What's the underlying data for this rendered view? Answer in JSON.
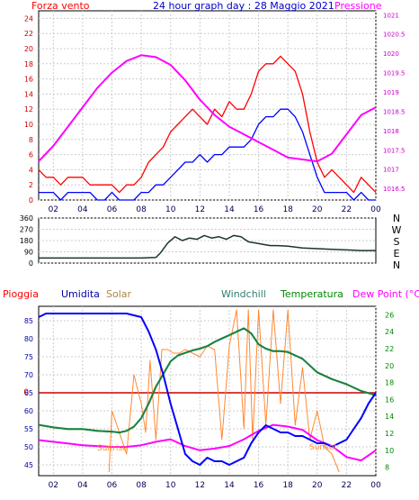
{
  "title": "24 hour graph day : 28 Maggio 2021",
  "chart_data": [
    {
      "type": "line",
      "labels": {
        "left": "Forza vento",
        "right": "Pressione"
      },
      "x_ticks": [
        "02",
        "04",
        "06",
        "08",
        "10",
        "12",
        "14",
        "16",
        "18",
        "20",
        "22",
        "00"
      ],
      "x_range": [
        1,
        24
      ],
      "y_left_ticks": [
        "0",
        "2",
        "4",
        "6",
        "8",
        "10",
        "12",
        "14",
        "16",
        "18",
        "20",
        "22",
        "24"
      ],
      "y_left_range": [
        0,
        25
      ],
      "y_right_ticks": [
        "1016.5",
        "1017",
        "1017.5",
        "1018",
        "1018.5",
        "1019",
        "1019.5",
        "1020",
        "1020.5",
        "1021"
      ],
      "y_right_range": [
        1016.2,
        1021.1
      ],
      "series": [
        {
          "key": "gust",
          "color": "#ff0000",
          "axis": "left",
          "x": [
            1,
            1.5,
            2,
            2.5,
            3,
            3.5,
            4,
            4.5,
            5,
            5.5,
            6,
            6.5,
            7,
            7.5,
            8,
            8.5,
            9,
            9.5,
            10,
            10.5,
            11,
            11.5,
            12,
            12.5,
            13,
            13.5,
            14,
            14.5,
            15,
            15.5,
            16,
            16.5,
            17,
            17.5,
            18,
            18.5,
            19,
            19.5,
            20,
            20.5,
            21,
            21.5,
            22,
            22.5,
            23,
            23.5,
            24
          ],
          "y": [
            4,
            3,
            3,
            2,
            3,
            3,
            3,
            2,
            2,
            2,
            2,
            1,
            2,
            2,
            3,
            5,
            6,
            7,
            9,
            10,
            11,
            12,
            11,
            10,
            12,
            11,
            13,
            12,
            12,
            14,
            17,
            18,
            18,
            19,
            18,
            17,
            14,
            9,
            5,
            3,
            4,
            3,
            2,
            1,
            3,
            2,
            1
          ]
        },
        {
          "key": "wind",
          "color": "#0000ff",
          "axis": "left",
          "x": [
            1,
            1.5,
            2,
            2.5,
            3,
            3.5,
            4,
            4.5,
            5,
            5.5,
            6,
            6.5,
            7,
            7.5,
            8,
            8.5,
            9,
            9.5,
            10,
            10.5,
            11,
            11.5,
            12,
            12.5,
            13,
            13.5,
            14,
            14.5,
            15,
            15.5,
            16,
            16.5,
            17,
            17.5,
            18,
            18.5,
            19,
            19.5,
            20,
            20.5,
            21,
            21.5,
            22,
            22.5,
            23,
            23.5,
            24
          ],
          "y": [
            1,
            1,
            1,
            0,
            1,
            1,
            1,
            1,
            0,
            0,
            1,
            0,
            0,
            0,
            1,
            1,
            2,
            2,
            3,
            4,
            5,
            5,
            6,
            5,
            6,
            6,
            7,
            7,
            7,
            8,
            10,
            11,
            11,
            12,
            12,
            11,
            9,
            6,
            3,
            1,
            1,
            1,
            1,
            0,
            1,
            0,
            0
          ]
        },
        {
          "key": "pressure",
          "color": "#ff00ff",
          "axis": "right",
          "x": [
            1,
            2,
            3,
            4,
            5,
            6,
            7,
            8,
            9,
            10,
            11,
            12,
            13,
            14,
            15,
            16,
            17,
            18,
            19,
            20,
            21,
            22,
            23,
            24
          ],
          "y": [
            1017.2,
            1017.6,
            1018.1,
            1018.6,
            1019.1,
            1019.5,
            1019.8,
            1019.95,
            1019.9,
            1019.7,
            1019.3,
            1018.8,
            1018.4,
            1018.1,
            1017.9,
            1017.7,
            1017.5,
            1017.3,
            1017.25,
            1017.2,
            1017.4,
            1017.9,
            1018.4,
            1018.6
          ]
        }
      ]
    },
    {
      "type": "line",
      "x_range": [
        1,
        24
      ],
      "y_ticks": [
        "0",
        "90",
        "180",
        "270",
        "360"
      ],
      "y_range": [
        0,
        360
      ],
      "compass": [
        "N",
        "W",
        "S",
        "E",
        "N"
      ],
      "series": [
        {
          "key": "direction",
          "color": "#1a3333",
          "x": [
            1,
            2,
            3,
            4,
            5,
            6,
            7,
            8,
            9,
            9.3,
            9.8,
            10.3,
            10.8,
            11.3,
            11.8,
            12.3,
            12.8,
            13.3,
            13.8,
            14.3,
            14.8,
            15.3,
            15.8,
            16.3,
            16.8,
            17.3,
            18,
            19,
            20,
            21,
            22,
            23,
            24
          ],
          "y": [
            40,
            40,
            40,
            40,
            40,
            40,
            40,
            40,
            45,
            80,
            160,
            210,
            180,
            200,
            190,
            220,
            200,
            210,
            190,
            220,
            210,
            170,
            160,
            150,
            140,
            140,
            135,
            120,
            115,
            110,
            105,
            100,
            100
          ]
        }
      ]
    },
    {
      "type": "line",
      "labels": {
        "left": "Pioggia",
        "humidity": "Umidita",
        "solar": "Solar",
        "windchill": "Windchill",
        "temperature": "Temperatura",
        "dew": "Dew Point (°C)",
        "sunrise": "Sunrise",
        "sunset": "Sunset",
        "rain_zero": "0"
      },
      "x_ticks": [
        "02",
        "04",
        "06",
        "08",
        "10",
        "12",
        "14",
        "16",
        "18",
        "20",
        "22",
        "00"
      ],
      "x_range": [
        1,
        24
      ],
      "y_left_ticks": [
        "45",
        "50",
        "55",
        "60",
        "65",
        "70",
        "75",
        "80",
        "85"
      ],
      "y_left_range": [
        42,
        89
      ],
      "y_right_ticks": [
        "8",
        "10",
        "12",
        "14",
        "16",
        "18",
        "20",
        "22",
        "24",
        "26"
      ],
      "y_right_range": [
        7,
        27
      ],
      "series": [
        {
          "key": "humidity",
          "color": "#0000ff",
          "axis": "left",
          "x": [
            1,
            1.5,
            2,
            3,
            4,
            5,
            6,
            7,
            8,
            8.5,
            9,
            9.5,
            10,
            10.5,
            11,
            11.5,
            12,
            12.5,
            13,
            13.5,
            14,
            14.5,
            15,
            15.5,
            16,
            16.5,
            17,
            17.5,
            18,
            18.5,
            19,
            19.5,
            20,
            20.5,
            21,
            21.5,
            22,
            22.5,
            23,
            23.5,
            24
          ],
          "y": [
            86,
            87,
            87,
            87,
            87,
            87,
            87,
            87,
            86,
            82,
            77,
            70,
            62,
            55,
            48,
            46,
            45,
            47,
            46,
            46,
            45,
            46,
            47,
            51,
            54,
            56,
            55,
            54,
            54,
            53,
            53,
            52,
            51,
            51,
            50,
            51,
            52,
            55,
            58,
            62,
            65
          ]
        },
        {
          "key": "solar",
          "color": "#ff8833",
          "axis": "left",
          "x": [
            5.8,
            6,
            7,
            7.5,
            8,
            8.3,
            8.6,
            9,
            9.4,
            9.8,
            10.2,
            10.6,
            11,
            11.5,
            12,
            12.5,
            13,
            13.5,
            14,
            14.5,
            15,
            15.3,
            15.6,
            16,
            16.5,
            17,
            17.5,
            18,
            18.5,
            19,
            19.5,
            20,
            20.5,
            21,
            21.5
          ],
          "y": [
            43,
            60,
            48,
            70,
            62,
            54,
            74,
            52,
            77,
            77,
            76,
            76,
            77,
            76,
            75,
            78,
            77,
            52,
            78,
            88,
            55,
            88,
            52,
            88,
            56,
            88,
            62,
            88,
            56,
            72,
            52,
            60,
            50,
            48,
            43
          ]
        },
        {
          "key": "temperature",
          "color": "#008800",
          "axis": "right",
          "x": [
            1,
            2,
            3,
            4,
            5,
            6,
            6.5,
            7,
            7.5,
            8,
            8.5,
            9,
            9.5,
            10,
            10.5,
            11,
            11.5,
            12,
            12.5,
            13,
            13.5,
            14,
            14.5,
            15,
            15.5,
            16,
            16.5,
            17,
            17.5,
            18,
            18.5,
            19,
            19.5,
            20,
            21,
            22,
            23,
            24
          ],
          "y": [
            13,
            12.7,
            12.5,
            12.5,
            12.3,
            12.2,
            12.1,
            12.3,
            12.8,
            13.8,
            15.5,
            17.5,
            19,
            20.5,
            21.2,
            21.5,
            21.8,
            22,
            22.3,
            22.8,
            23.2,
            23.6,
            24,
            24.4,
            23.8,
            22.5,
            22,
            21.7,
            21.7,
            21.6,
            21.2,
            20.8,
            20,
            19.2,
            18.4,
            17.8,
            17,
            16.5
          ]
        },
        {
          "key": "windchill",
          "color": "#2e7d6e",
          "axis": "right",
          "x": [
            1,
            2,
            3,
            4,
            5,
            6,
            6.5,
            7,
            7.5,
            8,
            8.5,
            9,
            9.5,
            10,
            10.5,
            11,
            11.5,
            12,
            12.5,
            13,
            13.5,
            14,
            14.5,
            15,
            15.5,
            16,
            16.5,
            17,
            17.5,
            18,
            18.5,
            19,
            19.5,
            20,
            21,
            22,
            23,
            24
          ],
          "y": [
            13,
            12.7,
            12.5,
            12.5,
            12.3,
            12.2,
            12.1,
            12.3,
            12.8,
            13.8,
            15.5,
            17.5,
            19,
            20.5,
            21.2,
            21.5,
            21.8,
            22,
            22.3,
            22.8,
            23.2,
            23.6,
            24,
            24.4,
            23.8,
            22.5,
            22,
            21.7,
            21.7,
            21.6,
            21.2,
            20.8,
            20,
            19.2,
            18.4,
            17.8,
            17,
            16.5
          ]
        },
        {
          "key": "dewpoint",
          "color": "#ff00ff",
          "axis": "right",
          "x": [
            1,
            2,
            3,
            4,
            5,
            6,
            7,
            8,
            9,
            10,
            11,
            12,
            13,
            14,
            15,
            16,
            17,
            18,
            19,
            20,
            21,
            22,
            23,
            24
          ],
          "y": [
            11.2,
            11,
            10.8,
            10.6,
            10.5,
            10.4,
            10.4,
            10.6,
            11,
            11.3,
            10.5,
            10,
            10.2,
            10.5,
            11.3,
            12.3,
            13,
            12.8,
            12.4,
            11.2,
            10.5,
            9.2,
            8.8,
            10
          ]
        }
      ]
    }
  ]
}
